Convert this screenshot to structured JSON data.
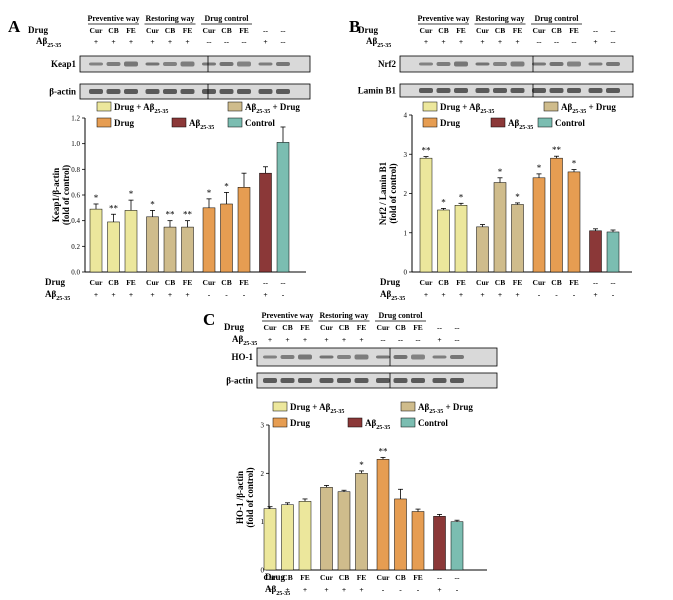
{
  "chart_data": [
    {
      "panel": "A",
      "type": "bar",
      "header": {
        "groups": [
          "Preventive way",
          "Restoring way",
          "Drug control"
        ],
        "drug_row_label": "Drug",
        "ab_row_label": "Aβ25-35"
      },
      "lanes": [
        "Cur",
        "CB",
        "FE",
        "Cur",
        "CB",
        "FE",
        "Cur",
        "CB",
        "FE",
        "--",
        "--"
      ],
      "ab_flags": [
        "+",
        "+",
        "+",
        "+",
        "+",
        "+",
        "--",
        "--",
        "--",
        "+",
        "--"
      ],
      "blots": [
        "Keap1",
        "β-actin"
      ],
      "ylabel": "Keap1/β-actin (fold of control)",
      "ylim": [
        0,
        1.2
      ],
      "yticks": [
        "0.0",
        "0.2",
        "0.4",
        "0.6",
        "0.8",
        "1.0",
        "1.2"
      ],
      "categories": [
        "Cur",
        "CB",
        "FE",
        "Cur",
        "CB",
        "FE",
        "Cur",
        "CB",
        "FE",
        "--",
        "--"
      ],
      "values": [
        0.49,
        0.39,
        0.48,
        0.43,
        0.35,
        0.35,
        0.5,
        0.53,
        0.66,
        0.77,
        1.01
      ],
      "errors": [
        0.04,
        0.06,
        0.08,
        0.05,
        0.05,
        0.05,
        0.07,
        0.09,
        0.11,
        0.05,
        0.12
      ],
      "series_index": [
        0,
        0,
        0,
        1,
        1,
        1,
        2,
        2,
        2,
        3,
        4
      ],
      "significance": [
        "*",
        "**",
        "*",
        "*",
        "**",
        "**",
        "*",
        "*",
        "",
        "",
        ""
      ],
      "xdrug": [
        "Cur",
        "CB",
        "FE",
        "Cur",
        "CB",
        "FE",
        "Cur",
        "CB",
        "FE",
        "--",
        "--"
      ],
      "xab": [
        "+",
        "+",
        "+",
        "+",
        "+",
        "+",
        "-",
        "-",
        "-",
        "+",
        "-"
      ]
    },
    {
      "panel": "B",
      "type": "bar",
      "header": {
        "groups": [
          "Preventive way",
          "Restoring way",
          "Drug control"
        ],
        "drug_row_label": "Drug",
        "ab_row_label": "Aβ25-35"
      },
      "lanes": [
        "Cur",
        "CB",
        "FE",
        "Cur",
        "CB",
        "FE",
        "Cur",
        "CB",
        "FE",
        "--",
        "--"
      ],
      "ab_flags": [
        "+",
        "+",
        "+",
        "+",
        "+",
        "+",
        "--",
        "--",
        "--",
        "+",
        "--"
      ],
      "blots": [
        "Nrf2",
        "Lamin B1"
      ],
      "ylabel": "Nrf2 / Lamin B1 (fold of control)",
      "ylim": [
        0,
        4
      ],
      "yticks": [
        "0",
        "1",
        "2",
        "3",
        "4"
      ],
      "categories": [
        "Cur",
        "CB",
        "FE",
        "Cur",
        "CB",
        "FE",
        "Cur",
        "CB",
        "FE",
        "--",
        "--"
      ],
      "values": [
        2.9,
        1.58,
        1.7,
        1.15,
        2.28,
        1.72,
        2.4,
        2.9,
        2.55,
        1.05,
        1.02
      ],
      "errors": [
        0.04,
        0.04,
        0.05,
        0.06,
        0.12,
        0.04,
        0.1,
        0.05,
        0.06,
        0.05,
        0.05
      ],
      "series_index": [
        0,
        0,
        0,
        1,
        1,
        1,
        2,
        2,
        2,
        3,
        4
      ],
      "significance": [
        "**",
        "*",
        "*",
        "",
        "*",
        "*",
        "*",
        "**",
        "*",
        "",
        ""
      ],
      "xdrug": [
        "Cur",
        "CB",
        "FE",
        "Cur",
        "CB",
        "FE",
        "Cur",
        "CB",
        "FE",
        "--",
        "--"
      ],
      "xab": [
        "+",
        "+",
        "+",
        "+",
        "+",
        "+",
        "-",
        "-",
        "-",
        "+",
        "-"
      ]
    },
    {
      "panel": "C",
      "type": "bar",
      "header": {
        "groups": [
          "Preventive way",
          "Restoring way",
          "Drug control"
        ],
        "drug_row_label": "Drug",
        "ab_row_label": "Aβ25-35"
      },
      "lanes": [
        "Cur",
        "CB",
        "FE",
        "Cur",
        "CB",
        "FE",
        "Cur",
        "CB",
        "FE",
        "--",
        "--"
      ],
      "ab_flags": [
        "+",
        "+",
        "+",
        "+",
        "+",
        "+",
        "--",
        "--",
        "--",
        "+",
        "--"
      ],
      "blots": [
        "HO-1",
        "β-actin"
      ],
      "ylabel": "HO-1 /β-actin (fold of control)",
      "ylim": [
        0,
        3
      ],
      "yticks": [
        "0",
        "1",
        "2",
        "3"
      ],
      "categories": [
        "Cur",
        "CB",
        "FE",
        "Cur",
        "CB",
        "FE",
        "Cur",
        "CB",
        "FE",
        "--",
        "--"
      ],
      "values": [
        1.27,
        1.35,
        1.42,
        1.71,
        1.62,
        2.0,
        2.29,
        1.47,
        1.21,
        1.11,
        1.0
      ],
      "errors": [
        0.04,
        0.04,
        0.05,
        0.04,
        0.03,
        0.05,
        0.04,
        0.2,
        0.05,
        0.04,
        0.03
      ],
      "series_index": [
        0,
        0,
        0,
        1,
        1,
        1,
        2,
        2,
        2,
        3,
        4
      ],
      "significance": [
        "",
        "",
        "",
        "",
        "",
        "*",
        "**",
        "",
        "",
        "",
        ""
      ],
      "xdrug": [
        "Cur",
        "CB",
        "FE",
        "Cur",
        "CB",
        "FE",
        "Cur",
        "CB",
        "FE",
        "--",
        "--"
      ],
      "xab": [
        "+",
        "+",
        "+",
        "+",
        "+",
        "+",
        "-",
        "-",
        "-",
        "+",
        "-"
      ]
    }
  ],
  "legend": {
    "labels": [
      "Drug + Aβ25-35",
      "Aβ25-35 + Drug",
      "Drug",
      "Aβ25-35",
      "Control"
    ],
    "colors": [
      "#ece79c",
      "#cfbc8c",
      "#e69d52",
      "#8b3838",
      "#7bbdb1"
    ]
  }
}
